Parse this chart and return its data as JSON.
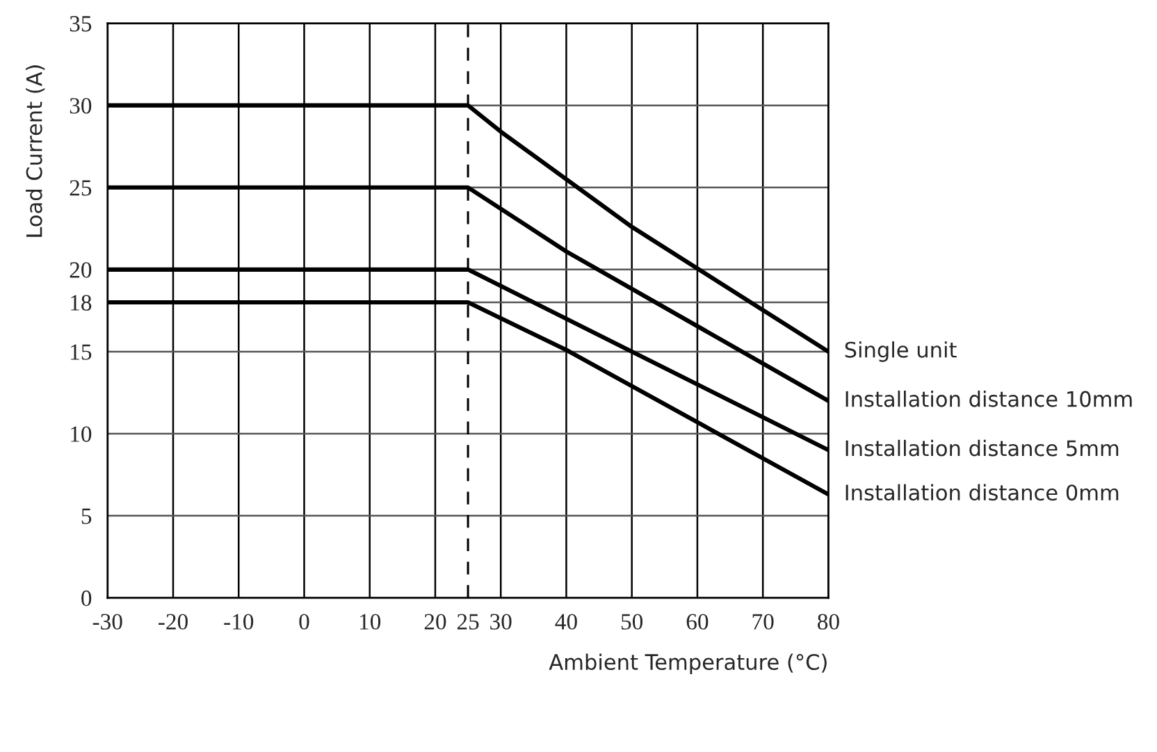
{
  "chart_data": {
    "type": "line",
    "xlabel": "Ambient Temperature (°C)",
    "ylabel": "Load Current (A)",
    "series": [
      {
        "name": "Single unit",
        "color": "#000000",
        "x": [
          -30,
          25,
          30,
          50,
          80
        ],
        "values": [
          30,
          30,
          28.4,
          22.6,
          15
        ]
      },
      {
        "name": "Installation distance 10mm",
        "color": "#000000",
        "x": [
          -30,
          25,
          40,
          80
        ],
        "values": [
          25,
          25,
          21.1,
          12
        ]
      },
      {
        "name": "Installation distance 5mm",
        "color": "#000000",
        "x": [
          -30,
          25,
          80
        ],
        "values": [
          20,
          20,
          9
        ]
      },
      {
        "name": "Installation distance 0mm",
        "color": "#000000",
        "x": [
          -30,
          25,
          40,
          80
        ],
        "values": [
          18,
          18,
          15.1,
          6.3
        ]
      }
    ],
    "xlim": [
      -30,
      80
    ],
    "ylim": [
      0,
      35
    ],
    "xticks": [
      -30,
      -20,
      -10,
      0,
      10,
      20,
      25,
      30,
      40,
      50,
      60,
      70,
      80
    ],
    "yticks": [
      0,
      5,
      10,
      15,
      18,
      20,
      25,
      30,
      35
    ],
    "ref_lines": [
      {
        "axis": "x",
        "value": 25,
        "color": "#000000",
        "line_style": "dashed"
      }
    ],
    "grid": true,
    "legend": false,
    "marker": "none",
    "line_style": "solid"
  }
}
